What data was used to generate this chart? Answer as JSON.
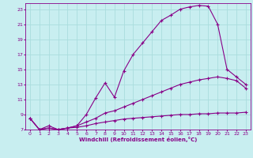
{
  "xlabel": "Windchill (Refroidissement éolien,°C)",
  "background_color": "#c8eef0",
  "line_color": "#880088",
  "grid_color": "#aadddd",
  "xlim": [
    -0.5,
    23.5
  ],
  "ylim": [
    7,
    23.8
  ],
  "xticks": [
    0,
    1,
    2,
    3,
    4,
    5,
    6,
    7,
    8,
    9,
    10,
    11,
    12,
    13,
    14,
    15,
    16,
    17,
    18,
    19,
    20,
    21,
    22,
    23
  ],
  "yticks": [
    7,
    9,
    11,
    13,
    15,
    17,
    19,
    21,
    23
  ],
  "line1_x": [
    0,
    1,
    2,
    3,
    4,
    5,
    6,
    7,
    8,
    9,
    10,
    11,
    12,
    13,
    14,
    15,
    16,
    17,
    18,
    19,
    20,
    21,
    22,
    23
  ],
  "line1_y": [
    8.5,
    7.0,
    7.5,
    7.0,
    7.2,
    7.5,
    9.0,
    11.2,
    13.2,
    11.3,
    14.8,
    17.0,
    18.5,
    20.0,
    21.5,
    22.2,
    23.0,
    23.3,
    23.5,
    23.4,
    21.0,
    15.0,
    14.0,
    13.0
  ],
  "line2_x": [
    0,
    1,
    2,
    3,
    4,
    5,
    6,
    7,
    8,
    9,
    10,
    11,
    12,
    13,
    14,
    15,
    16,
    17,
    18,
    19,
    20,
    21,
    22,
    23
  ],
  "line2_y": [
    8.5,
    7.0,
    7.2,
    7.0,
    7.2,
    7.5,
    8.0,
    8.5,
    9.2,
    9.5,
    10.0,
    10.5,
    11.0,
    11.5,
    12.0,
    12.5,
    13.0,
    13.3,
    13.6,
    13.8,
    14.0,
    13.8,
    13.5,
    12.5
  ],
  "line3_x": [
    0,
    1,
    2,
    3,
    4,
    5,
    6,
    7,
    8,
    9,
    10,
    11,
    12,
    13,
    14,
    15,
    16,
    17,
    18,
    19,
    20,
    21,
    22,
    23
  ],
  "line3_y": [
    8.5,
    7.0,
    7.2,
    7.0,
    7.2,
    7.3,
    7.5,
    7.8,
    8.0,
    8.2,
    8.4,
    8.5,
    8.6,
    8.7,
    8.8,
    8.9,
    9.0,
    9.0,
    9.1,
    9.1,
    9.2,
    9.2,
    9.2,
    9.3
  ]
}
